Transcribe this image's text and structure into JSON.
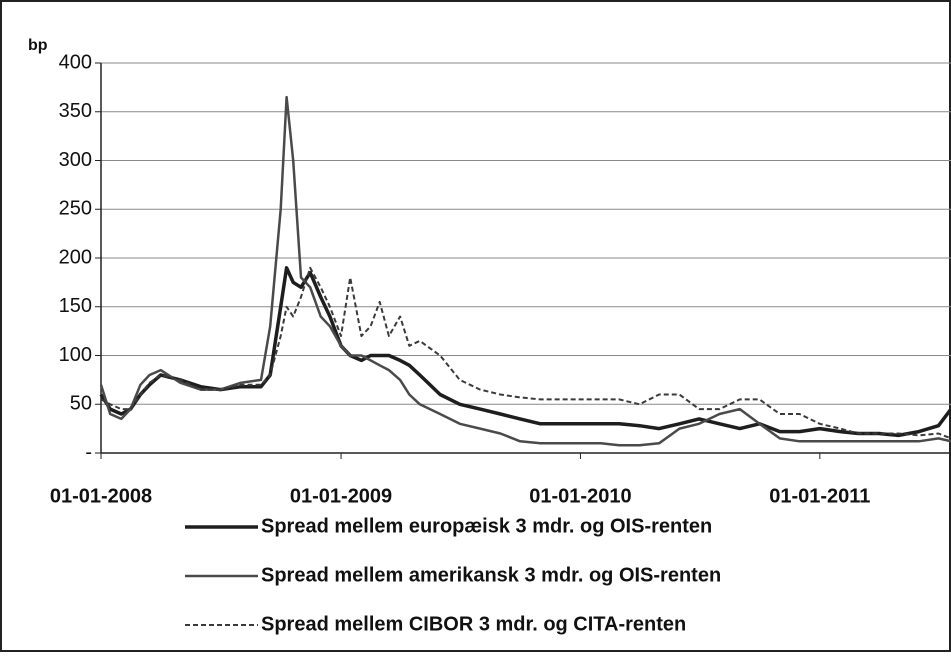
{
  "chart_data": {
    "type": "line",
    "ylabel": "bp",
    "x": [
      "2008-01-01",
      "2008-01-15",
      "2008-02-01",
      "2008-02-15",
      "2008-03-01",
      "2008-03-15",
      "2008-04-01",
      "2008-05-01",
      "2008-06-01",
      "2008-07-01",
      "2008-08-01",
      "2008-09-01",
      "2008-09-15",
      "2008-10-01",
      "2008-10-10",
      "2008-10-20",
      "2008-11-01",
      "2008-11-15",
      "2008-12-01",
      "2008-12-15",
      "2009-01-01",
      "2009-01-15",
      "2009-02-01",
      "2009-02-15",
      "2009-03-01",
      "2009-03-15",
      "2009-04-01",
      "2009-04-15",
      "2009-05-01",
      "2009-06-01",
      "2009-07-01",
      "2009-08-01",
      "2009-09-01",
      "2009-10-01",
      "2009-11-01",
      "2009-12-01",
      "2010-01-01",
      "2010-02-01",
      "2010-03-01",
      "2010-04-01",
      "2010-05-01",
      "2010-06-01",
      "2010-07-01",
      "2010-08-01",
      "2010-09-01",
      "2010-10-01",
      "2010-11-01",
      "2010-12-01",
      "2011-01-01",
      "2011-02-01",
      "2011-03-01",
      "2011-04-01",
      "2011-05-01",
      "2011-06-01",
      "2011-07-01",
      "2011-07-20"
    ],
    "series": [
      {
        "name": "Spread mellem europæisk 3 mdr. og OIS-renten",
        "color": "#1e1e1e",
        "width": 3.5,
        "dashed": false,
        "values": [
          60,
          45,
          40,
          45,
          60,
          70,
          80,
          75,
          68,
          65,
          68,
          68,
          80,
          150,
          190,
          175,
          170,
          185,
          160,
          140,
          110,
          100,
          95,
          100,
          100,
          100,
          95,
          90,
          80,
          60,
          50,
          45,
          40,
          35,
          30,
          30,
          30,
          30,
          30,
          28,
          25,
          30,
          35,
          30,
          25,
          30,
          22,
          22,
          25,
          22,
          20,
          20,
          18,
          22,
          28,
          45
        ]
      },
      {
        "name": "Spread mellem amerikansk 3 mdr. og OIS-renten",
        "color": "#4a4a4a",
        "width": 2.5,
        "dashed": false,
        "values": [
          70,
          40,
          35,
          45,
          70,
          80,
          85,
          72,
          65,
          65,
          72,
          75,
          130,
          250,
          365,
          300,
          180,
          170,
          140,
          130,
          110,
          100,
          100,
          95,
          90,
          85,
          75,
          60,
          50,
          40,
          30,
          25,
          20,
          12,
          10,
          10,
          10,
          10,
          8,
          8,
          10,
          25,
          30,
          40,
          45,
          30,
          15,
          12,
          12,
          12,
          12,
          12,
          12,
          12,
          15,
          12
        ]
      },
      {
        "name": "Spread mellem CIBOR 3 mdr. og CITA-renten",
        "color": "#3a3a3a",
        "width": 2,
        "dashed": true,
        "values": [
          55,
          50,
          45,
          45,
          60,
          72,
          80,
          75,
          65,
          65,
          70,
          70,
          80,
          120,
          150,
          140,
          160,
          190,
          170,
          150,
          120,
          180,
          120,
          130,
          155,
          120,
          140,
          110,
          115,
          100,
          75,
          65,
          60,
          57,
          55,
          55,
          55,
          55,
          55,
          50,
          60,
          60,
          45,
          45,
          55,
          55,
          40,
          40,
          30,
          25,
          20,
          20,
          20,
          18,
          20,
          15
        ]
      }
    ],
    "xlim": [
      "2008-01-01",
      "2011-07-20"
    ],
    "xticks": [
      {
        "value": "2008-01-01",
        "label": "01-01-2008"
      },
      {
        "value": "2009-01-01",
        "label": "01-01-2009"
      },
      {
        "value": "2010-01-01",
        "label": "01-01-2010"
      },
      {
        "value": "2011-01-01",
        "label": "01-01-2011"
      }
    ],
    "ylim": [
      0,
      400
    ],
    "yticks": [
      {
        "value": 0,
        "label": "-"
      },
      50,
      100,
      150,
      200,
      250,
      300,
      350,
      400
    ],
    "grid": true
  }
}
